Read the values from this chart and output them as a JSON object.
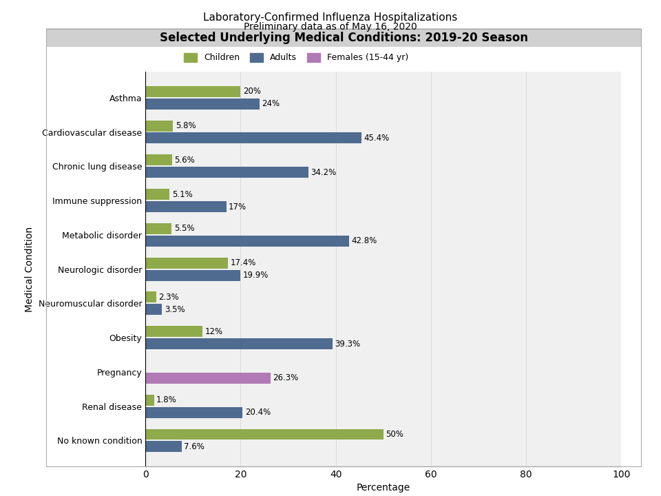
{
  "title_line1": "Laboratory-Confirmed Influenza Hospitalizations",
  "title_line2": "Preliminary data as of May 16, 2020",
  "subtitle": "Selected Underlying Medical Conditions: 2019-20 Season",
  "xlabel": "Percentage",
  "ylabel": "Medical Condition",
  "legend_labels": [
    "Children",
    "Adults",
    "Females (15-44 yr)"
  ],
  "colors": {
    "children": "#8faa4b",
    "adults": "#4f6b8f",
    "females": "#b07ab5"
  },
  "background_color": "#d0d0d0",
  "plot_bg": "#f0f0f0",
  "outer_bg": "#ffffff",
  "conditions": [
    "No known condition",
    "Renal disease",
    "Pregnancy",
    "Obesity",
    "Neuromuscular disorder",
    "Neurologic disorder",
    "Metabolic disorder",
    "Immune suppression",
    "Chronic lung disease",
    "Cardiovascular disease",
    "Asthma"
  ],
  "children_values": [
    50,
    1.8,
    null,
    12,
    2.3,
    17.4,
    5.5,
    5.1,
    5.6,
    5.8,
    20
  ],
  "adults_values": [
    7.6,
    20.4,
    null,
    39.3,
    3.5,
    19.9,
    42.8,
    17,
    34.2,
    45.4,
    24
  ],
  "females_values": [
    null,
    null,
    26.3,
    null,
    null,
    null,
    null,
    null,
    null,
    null,
    null
  ],
  "children_labels": [
    "50%",
    "1.8%",
    "",
    "12%",
    "2.3%",
    "17.4%",
    "5.5%",
    "5.1%",
    "5.6%",
    "5.8%",
    "20%"
  ],
  "adults_labels": [
    "7.6%",
    "20.4%",
    "",
    "39.3%",
    "3.5%",
    "19.9%",
    "42.8%",
    "17%",
    "34.2%",
    "45.4%",
    "24%"
  ],
  "females_labels": [
    "",
    "",
    "26.3%",
    "",
    "",
    "",
    "",
    "",
    "",
    "",
    ""
  ],
  "xlim": [
    0,
    100
  ],
  "xticks": [
    0,
    20,
    40,
    60,
    80,
    100
  ]
}
